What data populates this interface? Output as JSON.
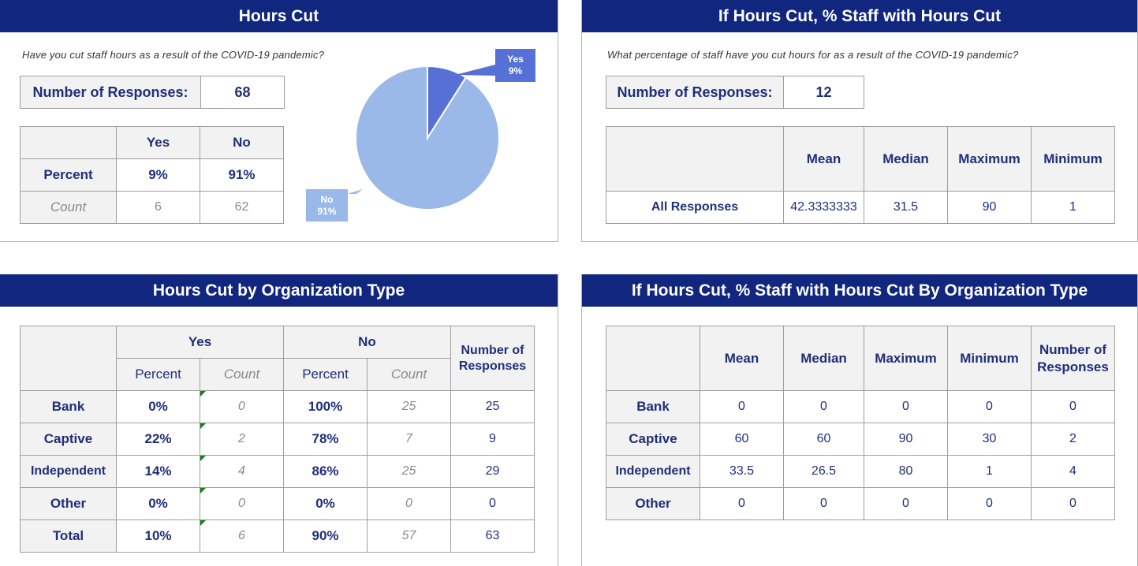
{
  "panels": {
    "hours_cut": {
      "title": "Hours Cut",
      "question": "Have you cut staff hours as a result of the COVID-19 pandemic?",
      "responses_label": "Number of Responses:",
      "responses_value": "68",
      "table": {
        "headers": [
          "Yes",
          "No"
        ],
        "rows": [
          {
            "label": "Percent",
            "values": [
              "9%",
              "91%"
            ]
          },
          {
            "label": "Count",
            "values": [
              "6",
              "62"
            ]
          }
        ]
      },
      "pie": {
        "yes_label": "Yes",
        "yes_pct": "9%",
        "no_label": "No",
        "no_pct": "91%",
        "yes_value": 9,
        "no_value": 91,
        "yes_color": "#5670d6",
        "no_color": "#9ab8e8"
      }
    },
    "pct_staff": {
      "title": "If Hours Cut, % Staff with Hours Cut",
      "question": "What percentage of staff have you cut hours for as a result of the COVID-19 pandemic?",
      "responses_label": "Number of Responses:",
      "responses_value": "12",
      "table": {
        "headers": [
          "Mean",
          "Median",
          "Maximum",
          "Minimum"
        ],
        "row_label": "All Responses",
        "values": [
          "42.3333333",
          "31.5",
          "90",
          "1"
        ]
      }
    },
    "by_org": {
      "title": "Hours Cut by Organization Type",
      "group_yes": "Yes",
      "group_no": "No",
      "col_responses": "Number of Responses",
      "sub_percent": "Percent",
      "sub_count": "Count",
      "rows": [
        {
          "label": "Bank",
          "yes_pct": "0%",
          "yes_count": "0",
          "no_pct": "100%",
          "no_count": "25",
          "responses": "25"
        },
        {
          "label": "Captive",
          "yes_pct": "22%",
          "yes_count": "2",
          "no_pct": "78%",
          "no_count": "7",
          "responses": "9"
        },
        {
          "label": "Independent",
          "yes_pct": "14%",
          "yes_count": "4",
          "no_pct": "86%",
          "no_count": "25",
          "responses": "29"
        },
        {
          "label": "Other",
          "yes_pct": "0%",
          "yes_count": "0",
          "no_pct": "0%",
          "no_count": "0",
          "responses": "0"
        },
        {
          "label": "Total",
          "yes_pct": "10%",
          "yes_count": "6",
          "no_pct": "90%",
          "no_count": "57",
          "responses": "63"
        }
      ]
    },
    "pct_by_org": {
      "title": "If Hours Cut, % Staff with Hours Cut By Organization Type",
      "headers": [
        "Mean",
        "Median",
        "Maximum",
        "Minimum",
        "Number of Responses"
      ],
      "rows": [
        {
          "label": "Bank",
          "values": [
            "0",
            "0",
            "0",
            "0",
            "0"
          ]
        },
        {
          "label": "Captive",
          "values": [
            "60",
            "60",
            "90",
            "30",
            "2"
          ]
        },
        {
          "label": "Independent",
          "values": [
            "33.5",
            "26.5",
            "80",
            "1",
            "4"
          ]
        },
        {
          "label": "Other",
          "values": [
            "0",
            "0",
            "0",
            "0",
            "0"
          ]
        }
      ]
    }
  }
}
